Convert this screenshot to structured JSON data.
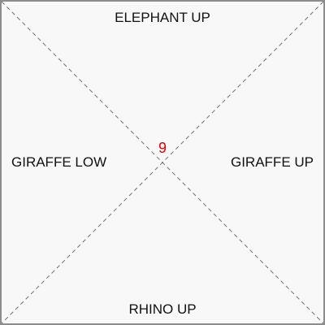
{
  "regions": {
    "top": "ELEPHANT UP",
    "left": "GIRAFFE LOW",
    "right": "GIRAFFE UP",
    "bottom": "RHINO UP"
  },
  "center": {
    "value": "9",
    "color": "#e00000"
  },
  "colors": {
    "background": "#f8f8f8",
    "border": "#8c8c8c",
    "diagonal": "#707070",
    "text": "#111111"
  }
}
